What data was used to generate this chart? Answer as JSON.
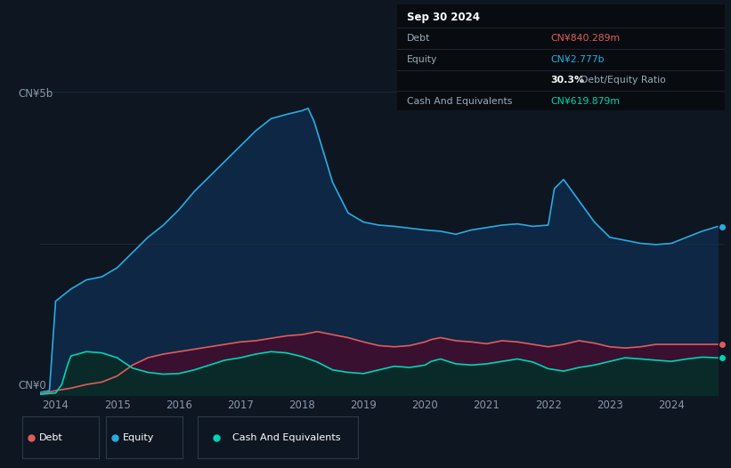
{
  "bg_color": "#0e1621",
  "plot_bg_color": "#0e1621",
  "title_box": {
    "date": "Sep 30 2024",
    "debt_label": "Debt",
    "debt_value": "CN¥840.289m",
    "equity_label": "Equity",
    "equity_value": "CN¥2.777b",
    "ratio_bold": "30.3%",
    "ratio_text": "Debt/Equity Ratio",
    "cash_label": "Cash And Equivalents",
    "cash_value": "CN¥619.879m"
  },
  "ylabel_top": "CN¥5b",
  "ylabel_bottom": "CN¥0",
  "grid_color": "#1e2d40",
  "equity_color": "#29abe2",
  "equity_fill": "#0d2744",
  "debt_color": "#e05c5c",
  "debt_fill": "#3a1030",
  "cash_color": "#00d4b4",
  "cash_fill": "#0a2a2a",
  "legend_border": "#2a3a4a",
  "years": [
    2014,
    2015,
    2016,
    2017,
    2018,
    2019,
    2020,
    2021,
    2022,
    2023,
    2024
  ],
  "equity_x": [
    2013.75,
    2013.9,
    2014.0,
    2014.25,
    2014.5,
    2014.75,
    2015.0,
    2015.25,
    2015.5,
    2015.75,
    2016.0,
    2016.25,
    2016.5,
    2016.75,
    2017.0,
    2017.25,
    2017.5,
    2017.75,
    2018.0,
    2018.1,
    2018.2,
    2018.5,
    2018.75,
    2019.0,
    2019.25,
    2019.5,
    2019.75,
    2020.0,
    2020.25,
    2020.5,
    2020.75,
    2021.0,
    2021.25,
    2021.5,
    2021.75,
    2022.0,
    2022.1,
    2022.25,
    2022.5,
    2022.75,
    2023.0,
    2023.25,
    2023.5,
    2023.75,
    2024.0,
    2024.25,
    2024.5,
    2024.75
  ],
  "equity_y": [
    0.05,
    0.08,
    1.55,
    1.75,
    1.9,
    1.95,
    2.1,
    2.35,
    2.6,
    2.8,
    3.05,
    3.35,
    3.6,
    3.85,
    4.1,
    4.35,
    4.55,
    4.62,
    4.68,
    4.72,
    4.5,
    3.5,
    3.0,
    2.85,
    2.8,
    2.78,
    2.75,
    2.72,
    2.7,
    2.65,
    2.72,
    2.76,
    2.8,
    2.82,
    2.78,
    2.8,
    3.4,
    3.55,
    3.2,
    2.85,
    2.6,
    2.55,
    2.5,
    2.48,
    2.5,
    2.6,
    2.7,
    2.777
  ],
  "debt_x": [
    2013.75,
    2014.0,
    2014.25,
    2014.5,
    2014.75,
    2015.0,
    2015.25,
    2015.5,
    2015.75,
    2016.0,
    2016.25,
    2016.5,
    2016.75,
    2017.0,
    2017.25,
    2017.5,
    2017.75,
    2018.0,
    2018.1,
    2018.25,
    2018.5,
    2018.75,
    2019.0,
    2019.25,
    2019.5,
    2019.75,
    2020.0,
    2020.1,
    2020.25,
    2020.5,
    2020.75,
    2021.0,
    2021.25,
    2021.5,
    2021.75,
    2022.0,
    2022.25,
    2022.5,
    2022.75,
    2023.0,
    2023.25,
    2023.5,
    2023.75,
    2024.0,
    2024.25,
    2024.5,
    2024.75
  ],
  "debt_y": [
    0.02,
    0.08,
    0.12,
    0.18,
    0.22,
    0.32,
    0.5,
    0.62,
    0.68,
    0.72,
    0.76,
    0.8,
    0.84,
    0.88,
    0.9,
    0.94,
    0.98,
    1.0,
    1.02,
    1.05,
    1.0,
    0.95,
    0.88,
    0.82,
    0.8,
    0.82,
    0.88,
    0.92,
    0.95,
    0.9,
    0.88,
    0.85,
    0.9,
    0.88,
    0.84,
    0.8,
    0.84,
    0.9,
    0.86,
    0.8,
    0.78,
    0.8,
    0.84,
    0.84,
    0.84,
    0.84,
    0.84
  ],
  "cash_x": [
    2013.75,
    2014.0,
    2014.1,
    2014.2,
    2014.25,
    2014.5,
    2014.75,
    2015.0,
    2015.1,
    2015.25,
    2015.5,
    2015.75,
    2016.0,
    2016.25,
    2016.5,
    2016.75,
    2017.0,
    2017.25,
    2017.5,
    2017.75,
    2018.0,
    2018.25,
    2018.5,
    2018.75,
    2019.0,
    2019.25,
    2019.5,
    2019.75,
    2020.0,
    2020.1,
    2020.25,
    2020.5,
    2020.75,
    2021.0,
    2021.25,
    2021.5,
    2021.75,
    2022.0,
    2022.25,
    2022.5,
    2022.75,
    2023.0,
    2023.25,
    2023.5,
    2023.75,
    2024.0,
    2024.25,
    2024.5,
    2024.75
  ],
  "cash_y": [
    0.02,
    0.04,
    0.18,
    0.52,
    0.65,
    0.72,
    0.7,
    0.62,
    0.55,
    0.45,
    0.38,
    0.35,
    0.36,
    0.42,
    0.5,
    0.58,
    0.62,
    0.68,
    0.72,
    0.7,
    0.64,
    0.55,
    0.42,
    0.38,
    0.36,
    0.42,
    0.48,
    0.46,
    0.5,
    0.56,
    0.6,
    0.52,
    0.5,
    0.52,
    0.56,
    0.6,
    0.55,
    0.44,
    0.4,
    0.46,
    0.5,
    0.56,
    0.62,
    0.6,
    0.58,
    0.56,
    0.6,
    0.63,
    0.6198
  ],
  "xmin": 2013.75,
  "xmax": 2024.85,
  "ymin": 0,
  "ymax": 5.0,
  "xticks": [
    2014,
    2015,
    2016,
    2017,
    2018,
    2019,
    2020,
    2021,
    2022,
    2023,
    2024
  ]
}
